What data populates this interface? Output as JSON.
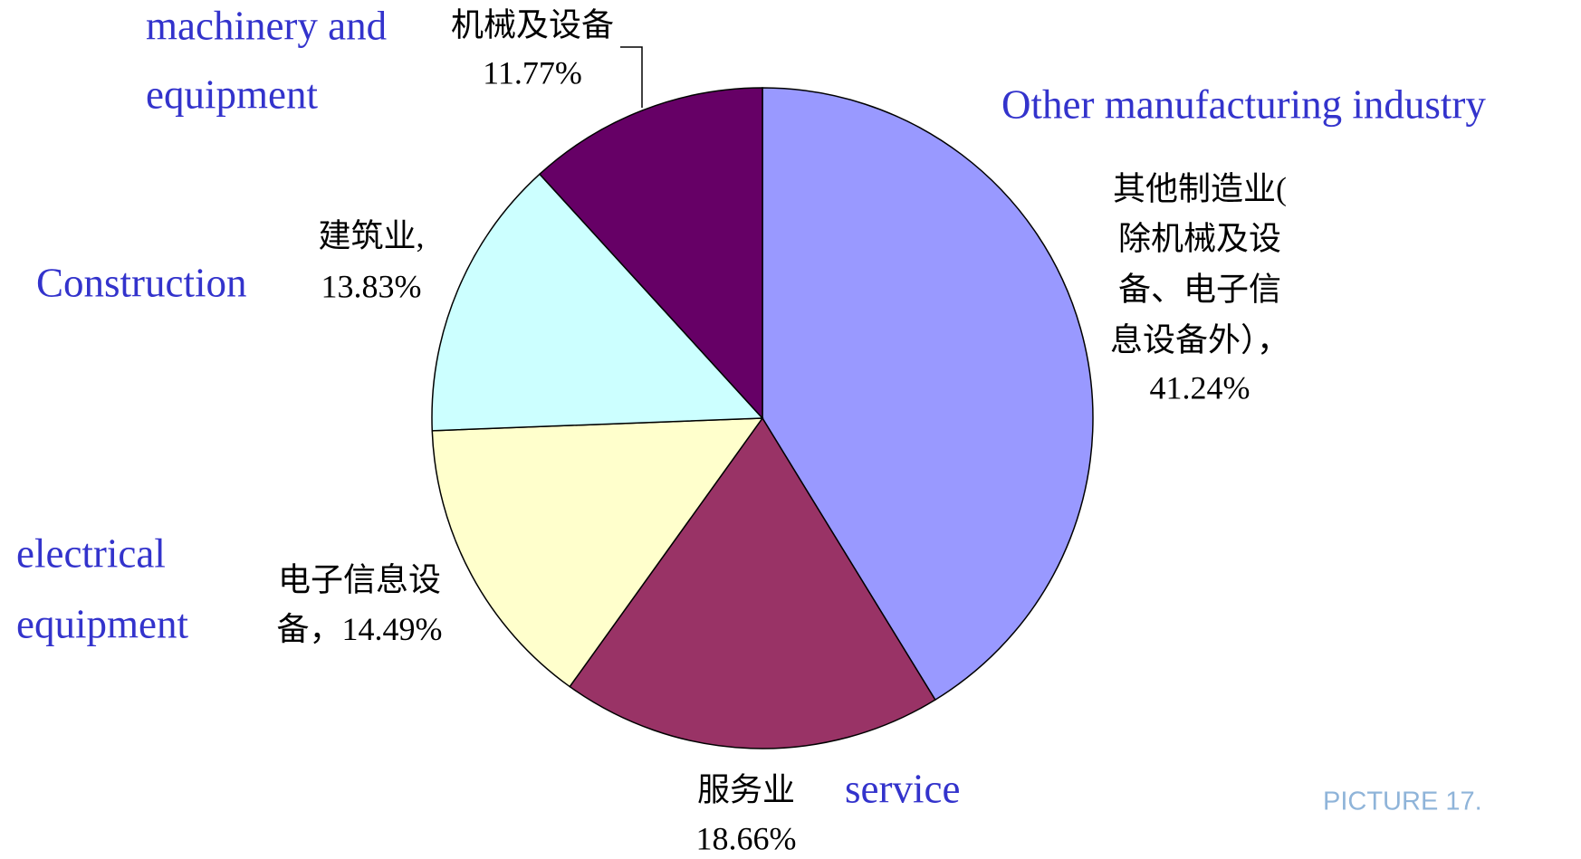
{
  "chart_data": {
    "type": "pie",
    "categories": [
      "Other manufacturing industry",
      "service",
      "electrical equipment",
      "Construction",
      "machinery and equipment"
    ],
    "english_labels": [
      [
        "Other manufacturing industry"
      ],
      [
        "service"
      ],
      [
        "electrical",
        "equipment"
      ],
      [
        "Construction"
      ],
      [
        "machinery and",
        "equipment"
      ]
    ],
    "chinese_labels": [
      [
        "其他制造业(",
        "除机械及设",
        "备、电子信",
        "息设备外），"
      ],
      [
        "服务业"
      ],
      [
        "电子信息设",
        "备，"
      ],
      [
        "建筑业,"
      ],
      [
        "机械及设备"
      ]
    ],
    "values": [
      41.24,
      18.66,
      14.49,
      13.83,
      11.77
    ],
    "value_labels": [
      "41.24%",
      "18.66%",
      "14.49%",
      "13.83%",
      "11.77%"
    ],
    "colors": [
      "#9999ff",
      "#993366",
      "#ffffcc",
      "#ccffff",
      "#660066"
    ]
  },
  "caption": "PICTURE 17."
}
